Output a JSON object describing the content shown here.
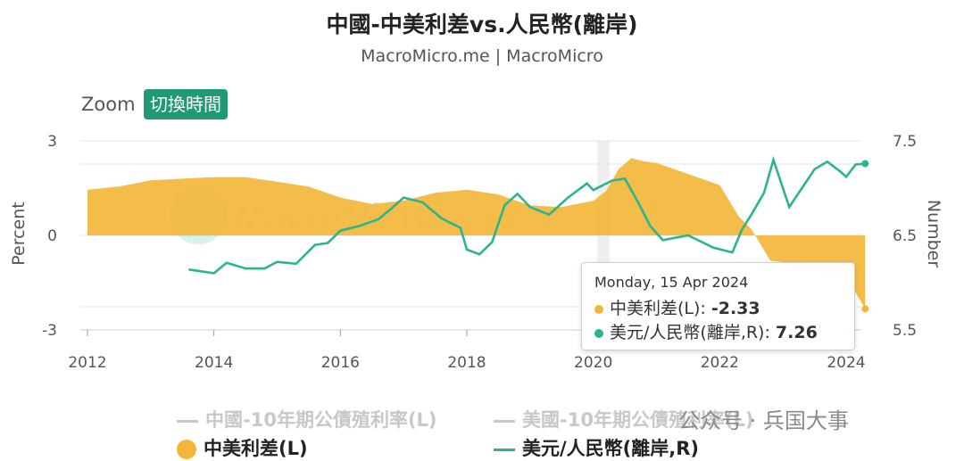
{
  "title": "中國-中美利差vs.人民幣(離岸)",
  "subtitle": "MacroMicro.me | MacroMicro",
  "zoom": {
    "label": "Zoom",
    "button": "切換時間"
  },
  "colors": {
    "spread": "#f3b63a",
    "cnh": "#2bb58f",
    "accent": "#1f9a74",
    "hidden": "#c8c8c8"
  },
  "tooltip": {
    "date": "Monday, 15 Apr 2024",
    "row1_label": "中美利差(L): ",
    "row1_value": "-2.33",
    "row2_label": "美元/人民幣(離岸,R): ",
    "row2_value": "7.26"
  },
  "watermark": "公众号 · 兵国大事",
  "chart_data": {
    "type": "area",
    "x_ticks": [
      "2012",
      "2014",
      "2016",
      "2018",
      "2020",
      "2022",
      "2024"
    ],
    "left_axis": {
      "label": "Percent",
      "ticks": [
        "3",
        "0",
        "-3"
      ],
      "range": [
        -3,
        3
      ]
    },
    "right_axis": {
      "label": "Number",
      "ticks": [
        "7.5",
        "6.5",
        "5.5"
      ],
      "range": [
        5.5,
        7.5
      ]
    },
    "grid": true,
    "legend_position": "bottom",
    "legend": [
      {
        "name": "中國-10年期公債殖利率(L)",
        "visible": false
      },
      {
        "name": "美國-10年期公債殖利率(L)",
        "visible": false
      },
      {
        "name": "中美利差(L)",
        "visible": true
      },
      {
        "name": "美元/人民幣(離岸,R)",
        "visible": true
      }
    ],
    "series": [
      {
        "name": "中美利差(L)",
        "type": "area",
        "axis": "left",
        "x": [
          2012.0,
          2012.5,
          2013.0,
          2013.5,
          2014.0,
          2014.5,
          2015.0,
          2015.5,
          2016.0,
          2016.5,
          2017.0,
          2017.5,
          2018.0,
          2018.5,
          2019.0,
          2019.5,
          2020.0,
          2020.2,
          2020.4,
          2020.6,
          2020.8,
          2021.0,
          2021.5,
          2022.0,
          2022.3,
          2022.5,
          2022.8,
          2023.0,
          2023.5,
          2024.0,
          2024.3
        ],
        "values": [
          1.45,
          1.55,
          1.75,
          1.8,
          1.85,
          1.85,
          1.7,
          1.55,
          1.2,
          1.0,
          1.1,
          1.35,
          1.45,
          1.3,
          0.95,
          0.9,
          1.1,
          1.4,
          2.1,
          2.45,
          2.35,
          2.3,
          1.95,
          1.6,
          0.6,
          0.2,
          -0.8,
          -0.85,
          -1.15,
          -1.3,
          -2.33
        ]
      },
      {
        "name": "美元/人民幣(離岸,R)",
        "type": "line",
        "axis": "right",
        "x": [
          2013.6,
          2013.8,
          2014.0,
          2014.2,
          2014.5,
          2014.8,
          2015.0,
          2015.3,
          2015.6,
          2015.8,
          2016.0,
          2016.3,
          2016.6,
          2016.8,
          2017.0,
          2017.3,
          2017.6,
          2017.9,
          2018.0,
          2018.2,
          2018.4,
          2018.6,
          2018.8,
          2019.0,
          2019.3,
          2019.6,
          2019.9,
          2020.0,
          2020.3,
          2020.5,
          2020.7,
          2020.9,
          2021.1,
          2021.5,
          2021.9,
          2022.2,
          2022.35,
          2022.5,
          2022.7,
          2022.85,
          2022.95,
          2023.1,
          2023.3,
          2023.5,
          2023.7,
          2023.9,
          2024.0,
          2024.15,
          2024.3
        ],
        "values": [
          6.14,
          6.12,
          6.1,
          6.21,
          6.15,
          6.15,
          6.22,
          6.2,
          6.4,
          6.42,
          6.55,
          6.6,
          6.67,
          6.78,
          6.9,
          6.85,
          6.68,
          6.58,
          6.35,
          6.3,
          6.43,
          6.82,
          6.94,
          6.8,
          6.72,
          6.9,
          7.05,
          6.98,
          7.08,
          7.1,
          6.86,
          6.6,
          6.45,
          6.5,
          6.37,
          6.32,
          6.56,
          6.72,
          6.95,
          7.3,
          7.1,
          6.8,
          7.0,
          7.2,
          7.28,
          7.18,
          7.12,
          7.25,
          7.26
        ]
      }
    ]
  }
}
